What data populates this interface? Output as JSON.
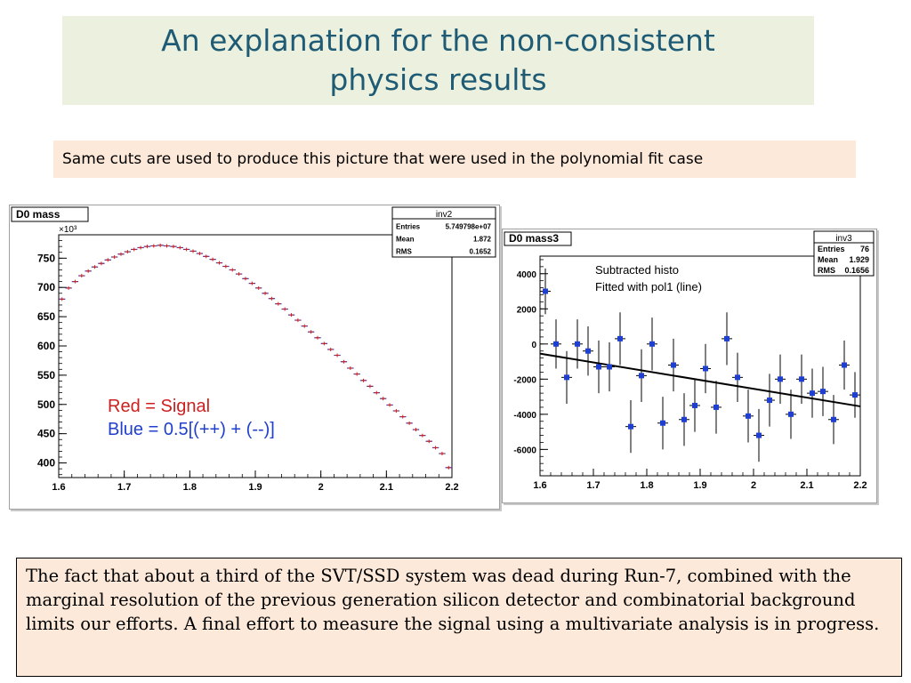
{
  "slide": {
    "title": "An explanation for the non-consistent physics results",
    "subtitle": "Same cuts are used to produce this picture that were used in the polynomial fit case",
    "note": "The fact that about a third of the SVT/SSD system was dead during Run-7, combined with the marginal resolution of the previous generation silicon detector and combinatorial background limits our efforts. A final effort to measure the signal using a multivariate analysis is in progress."
  },
  "colors": {
    "title": "#1f5b74",
    "title_bg": "#ebf1de",
    "box_bg": "#fde9d9",
    "signal": "#cc2020",
    "background": "#2040cc",
    "marker": "#1f3fd0",
    "fit_line": "#000000"
  },
  "chart_data": [
    {
      "type": "scatter",
      "title": "D0 mass",
      "multiplier": "×10³",
      "stats": {
        "name": "inv2",
        "rows": [
          {
            "label": "Entries",
            "value": "5.749798e+07"
          },
          {
            "label": "Mean",
            "value": "1.872"
          },
          {
            "label": "RMS",
            "value": "0.1652"
          }
        ]
      },
      "legend": [
        {
          "text": "Red = Signal",
          "color": "#cc2020"
        },
        {
          "text": "Blue = 0.5[(++) + (--)]",
          "color": "#2040cc"
        }
      ],
      "xlim": [
        1.6,
        2.2
      ],
      "ylim": [
        375,
        790
      ],
      "xticks": [
        1.6,
        1.7,
        1.8,
        1.9,
        2.0,
        2.1,
        2.2
      ],
      "xtick_labels": [
        "1.6",
        "1.7",
        "1.8",
        "1.9",
        "2",
        "2.1",
        "2.2"
      ],
      "yticks": [
        400,
        450,
        500,
        550,
        600,
        650,
        700,
        750
      ],
      "ytick_labels": [
        "400",
        "450",
        "500",
        "550",
        "600",
        "650",
        "700",
        "750"
      ],
      "bin_width": 0.01,
      "x": [
        1.605,
        1.615,
        1.625,
        1.635,
        1.645,
        1.655,
        1.665,
        1.675,
        1.685,
        1.695,
        1.705,
        1.715,
        1.725,
        1.735,
        1.745,
        1.755,
        1.765,
        1.775,
        1.785,
        1.795,
        1.805,
        1.815,
        1.825,
        1.835,
        1.845,
        1.855,
        1.865,
        1.875,
        1.885,
        1.895,
        1.905,
        1.915,
        1.925,
        1.935,
        1.945,
        1.955,
        1.965,
        1.975,
        1.985,
        1.995,
        2.005,
        2.015,
        2.025,
        2.035,
        2.045,
        2.055,
        2.065,
        2.075,
        2.085,
        2.095,
        2.105,
        2.115,
        2.125,
        2.135,
        2.145,
        2.155,
        2.165,
        2.175,
        2.185,
        2.195
      ],
      "series": [
        {
          "name": "Red = Signal",
          "color": "#cc2020",
          "values": [
            680,
            699,
            710,
            720,
            728,
            735,
            741,
            747,
            752,
            757,
            761,
            765,
            768,
            770,
            771,
            772,
            771,
            770,
            768,
            765,
            762,
            758,
            753,
            748,
            742,
            736,
            730,
            723,
            715,
            707,
            699,
            690,
            681,
            672,
            663,
            653,
            644,
            634,
            624,
            614,
            604,
            594,
            584,
            573,
            562,
            552,
            541,
            531,
            520,
            510,
            499,
            489,
            479,
            468,
            457,
            447,
            437,
            426,
            416,
            392
          ]
        }
      ]
    },
    {
      "type": "scatter",
      "title": "D0 mass3",
      "annotation": [
        "Subtracted histo",
        "Fitted with pol1 (line)"
      ],
      "stats": {
        "name": "inv3",
        "rows": [
          {
            "label": "Entries",
            "value": "76"
          },
          {
            "label": "Mean",
            "value": "1.929"
          },
          {
            "label": "RMS",
            "value": "0.1656"
          }
        ]
      },
      "xlim": [
        1.6,
        2.2
      ],
      "ylim": [
        -7500,
        5000
      ],
      "xticks": [
        1.6,
        1.7,
        1.8,
        1.9,
        2.0,
        2.1,
        2.2
      ],
      "xtick_labels": [
        "1.6",
        "1.7",
        "1.8",
        "1.9",
        "2",
        "2.1",
        "2.2"
      ],
      "yticks": [
        -6000,
        -4000,
        -2000,
        0,
        2000,
        4000
      ],
      "ytick_labels": [
        "-6000",
        "-4000",
        "-2000",
        "0",
        "2000",
        "4000"
      ],
      "bin_width": 0.02,
      "x": [
        1.61,
        1.63,
        1.65,
        1.67,
        1.69,
        1.71,
        1.73,
        1.75,
        1.77,
        1.79,
        1.81,
        1.83,
        1.85,
        1.87,
        1.89,
        1.91,
        1.93,
        1.95,
        1.97,
        1.99,
        2.01,
        2.03,
        2.05,
        2.07,
        2.09,
        2.11,
        2.13,
        2.15,
        2.17,
        2.19
      ],
      "series": [
        {
          "values": [
            3000,
            0,
            -1900,
            0,
            -400,
            -1300,
            -1300,
            300,
            -4700,
            -1800,
            0,
            -4500,
            -1200,
            -4300,
            -3500,
            -1400,
            -3600,
            300,
            -1900,
            -4100,
            -5200,
            -3200,
            -2000,
            -4000,
            -2000,
            -2800,
            -2700,
            -4300,
            -1200,
            -2900
          ],
          "errors": [
            1300,
            1400,
            1500,
            1400,
            1400,
            1500,
            1400,
            1500,
            1500,
            1500,
            1500,
            1500,
            1500,
            1500,
            1500,
            1400,
            1500,
            1500,
            1400,
            1500,
            1500,
            1500,
            1400,
            1400,
            1400,
            1400,
            1400,
            1400,
            1400,
            1300
          ]
        }
      ],
      "fit": {
        "x": [
          1.6,
          2.2
        ],
        "y": [
          -550,
          -3550
        ]
      }
    }
  ]
}
